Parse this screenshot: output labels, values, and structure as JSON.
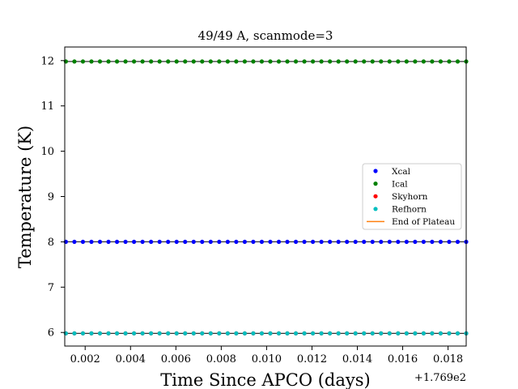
{
  "chart_data": {
    "type": "scatter",
    "title": "49/49 A, scanmode=3",
    "xlabel": "Time Since APCO (days)",
    "ylabel": "Temperature (K)",
    "x_offset_label": "+1.769e2",
    "xlim": [
      0.0011,
      0.0188
    ],
    "ylim": [
      5.7,
      12.3
    ],
    "xticks": [
      0.002,
      0.004,
      0.006,
      0.008,
      0.01,
      0.012,
      0.014,
      0.016,
      0.018
    ],
    "xtick_labels": [
      "0.002",
      "0.004",
      "0.006",
      "0.008",
      "0.010",
      "0.012",
      "0.014",
      "0.016",
      "0.018"
    ],
    "yticks": [
      6,
      7,
      8,
      9,
      10,
      11,
      12
    ],
    "ytick_labels": [
      "6",
      "7",
      "8",
      "9",
      "10",
      "11",
      "12"
    ],
    "grid": false,
    "legend_position": "center-right",
    "x_sampling": {
      "start": 0.00115,
      "end": 0.0188,
      "count": 48
    },
    "series": [
      {
        "name": "Xcal",
        "color": "#0000ff",
        "value": 8.0
      },
      {
        "name": "Ical",
        "color": "#008000",
        "value": 11.98
      },
      {
        "name": "Skyhorn",
        "color": "#ff0000",
        "value": 5.98
      },
      {
        "name": "Refhorn",
        "color": "#00bfbf",
        "value": 5.98
      }
    ],
    "legend": [
      {
        "name": "Xcal",
        "color": "#0000ff",
        "kind": "marker"
      },
      {
        "name": "Ical",
        "color": "#008000",
        "kind": "marker"
      },
      {
        "name": "Skyhorn",
        "color": "#ff0000",
        "kind": "marker"
      },
      {
        "name": "Refhorn",
        "color": "#00bfbf",
        "kind": "marker"
      },
      {
        "name": "End of Plateau",
        "color": "#ff7f0e",
        "kind": "line"
      }
    ]
  }
}
